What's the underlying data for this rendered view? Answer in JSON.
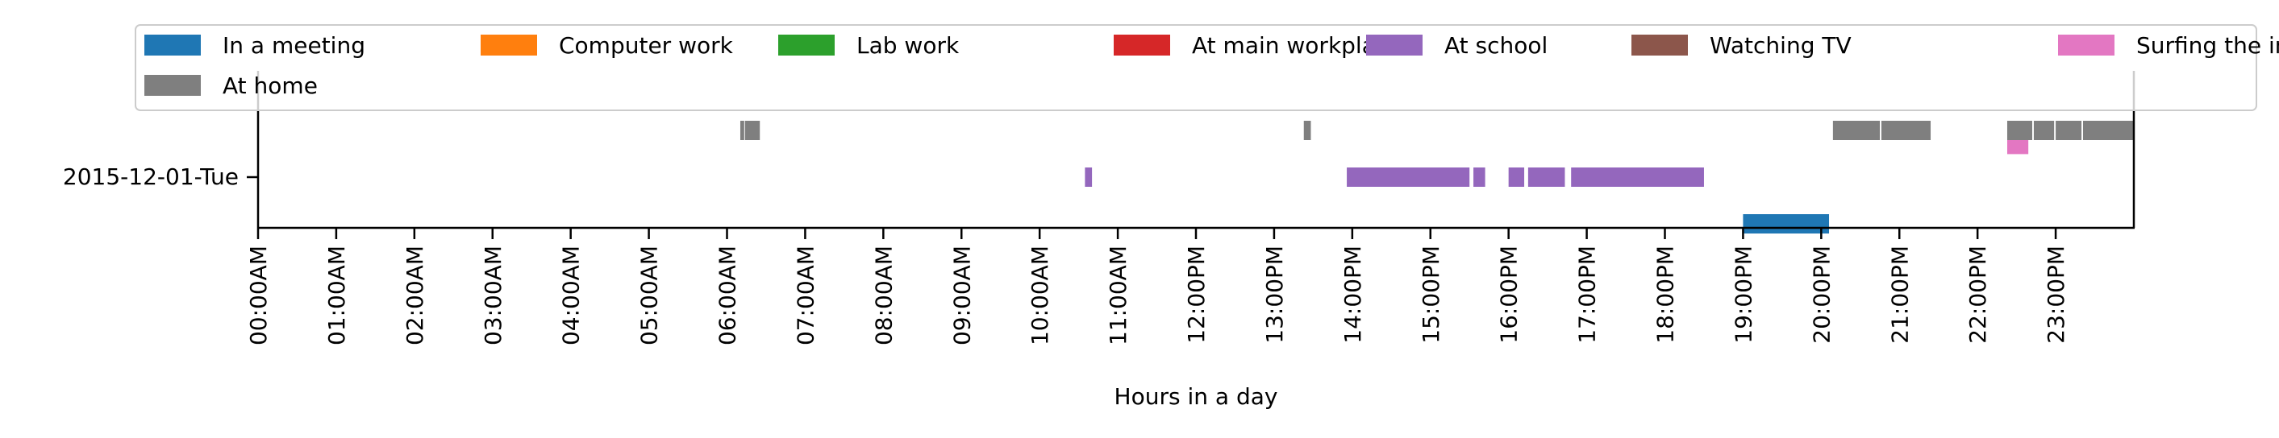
{
  "chart_data": {
    "type": "timeline",
    "xlabel": "Hours in a day",
    "ylabel": "",
    "xlim": [
      0,
      24
    ],
    "grid": false,
    "legend_position": "top",
    "row_label": "2015-12-01-Tue",
    "x_tick_labels": [
      "00:00AM",
      "01:00AM",
      "02:00AM",
      "03:00AM",
      "04:00AM",
      "05:00AM",
      "06:00AM",
      "07:00AM",
      "08:00AM",
      "09:00AM",
      "10:00AM",
      "11:00AM",
      "12:00PM",
      "13:00PM",
      "14:00PM",
      "15:00PM",
      "16:00PM",
      "17:00PM",
      "18:00PM",
      "19:00PM",
      "20:00PM",
      "21:00PM",
      "22:00PM",
      "23:00PM"
    ],
    "series": [
      {
        "name": "In a meeting",
        "color": "#1f77b4",
        "lane": -1,
        "intervals": [
          [
            19.0,
            20.1
          ]
        ]
      },
      {
        "name": "Computer work",
        "color": "#ff7f0e",
        "lane": 0,
        "intervals": []
      },
      {
        "name": "Lab work",
        "color": "#2ca02c",
        "lane": 0,
        "intervals": []
      },
      {
        "name": "At main workplace",
        "color": "#d62728",
        "lane": 0,
        "intervals": []
      },
      {
        "name": "At school",
        "color": "#9467bd",
        "lane": 0,
        "intervals": [
          [
            10.58,
            10.67
          ],
          [
            13.93,
            15.5
          ],
          [
            15.55,
            15.7
          ],
          [
            16.0,
            16.2
          ],
          [
            16.25,
            16.72
          ],
          [
            16.8,
            18.5
          ]
        ]
      },
      {
        "name": "Watching TV",
        "color": "#8c564b",
        "lane": 1,
        "intervals": []
      },
      {
        "name": "Surfing the internet",
        "color": "#e377c2",
        "lane": 0.7,
        "intervals": [
          [
            22.38,
            22.65
          ]
        ]
      },
      {
        "name": "At home",
        "color": "#7f7f7f",
        "lane": 1,
        "intervals": [
          [
            6.17,
            6.22
          ],
          [
            6.23,
            6.42
          ],
          [
            13.38,
            13.47
          ],
          [
            20.15,
            20.75
          ],
          [
            20.77,
            21.4
          ],
          [
            22.38,
            22.7
          ],
          [
            22.72,
            22.98
          ],
          [
            23.0,
            23.33
          ],
          [
            23.35,
            24.0
          ]
        ]
      }
    ]
  }
}
